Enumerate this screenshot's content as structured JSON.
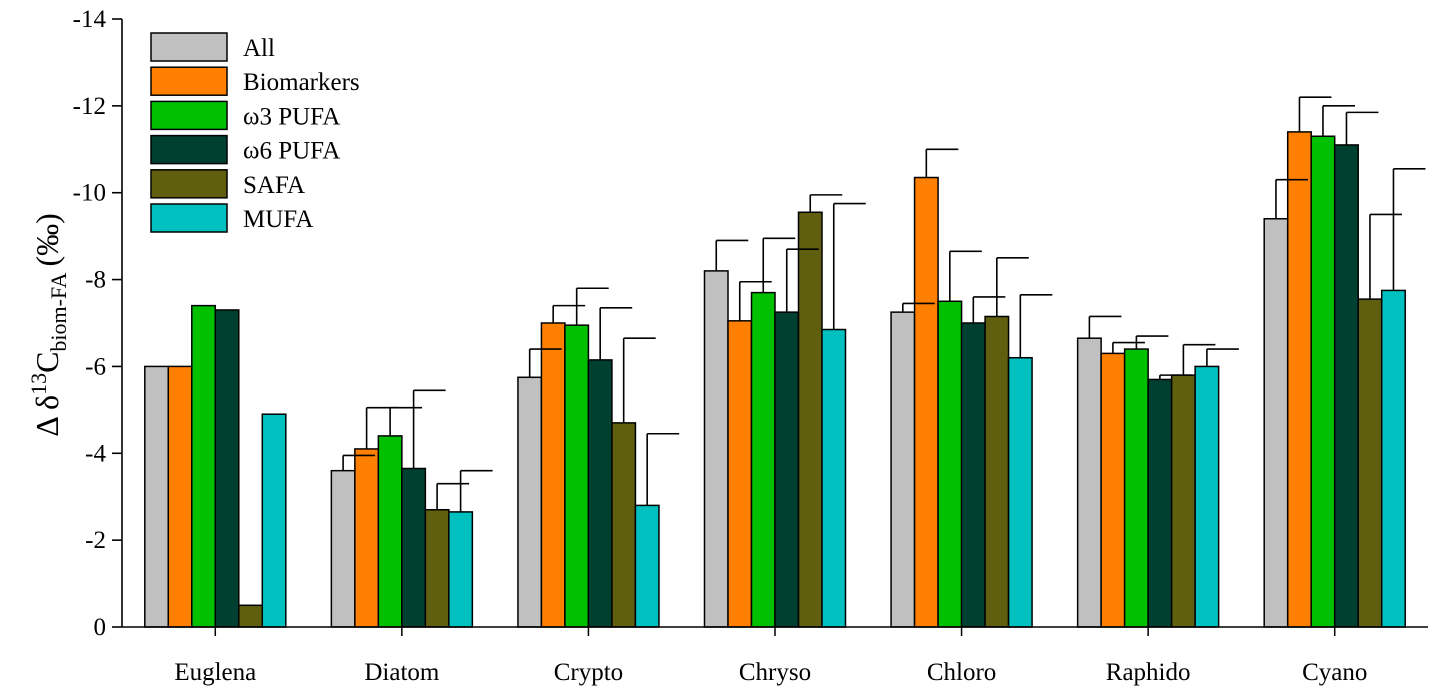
{
  "chart_data": {
    "type": "bar",
    "title": "",
    "xlabel": "",
    "ylabel": {
      "prefix": "Δ δ",
      "superscript": "13",
      "main": "C",
      "subscript": "biom-FA",
      "unit": "(‰)"
    },
    "y_reversed": true,
    "ylim": [
      0,
      -14
    ],
    "yticks": [
      0,
      -2,
      -4,
      -6,
      -8,
      -10,
      -12,
      -14
    ],
    "ytick_labels": [
      "0",
      "-2",
      "-4",
      "-6",
      "-8",
      "-10",
      "-12",
      "-14"
    ],
    "grid": false,
    "legend_position": "top-left",
    "categories": [
      "Euglena",
      "Diatom",
      "Crypto",
      "Chryso",
      "Chloro",
      "Raphido",
      "Cyano"
    ],
    "series": [
      {
        "name": "All",
        "color": "#c0c0c0",
        "values": [
          -6.0,
          -3.6,
          -5.75,
          -8.2,
          -7.25,
          -6.65,
          -9.4
        ],
        "errors": [
          null,
          0.35,
          0.65,
          0.7,
          0.2,
          0.5,
          0.9
        ]
      },
      {
        "name": "Biomarkers",
        "color": "#ff7f00",
        "values": [
          -6.0,
          -4.1,
          -7.0,
          -7.05,
          -10.35,
          -6.3,
          -11.4
        ],
        "errors": [
          null,
          0.95,
          0.4,
          0.9,
          0.65,
          0.25,
          0.8
        ]
      },
      {
        "name": "ω3 PUFA",
        "color": "#00c000",
        "values": [
          -7.4,
          -4.4,
          -6.95,
          -7.7,
          -7.5,
          -6.4,
          -11.3
        ],
        "errors": [
          null,
          0.65,
          0.85,
          1.25,
          1.15,
          0.3,
          0.7
        ]
      },
      {
        "name": "ω6 PUFA",
        "color": "#004030",
        "values": [
          -7.3,
          -3.65,
          -6.15,
          -7.25,
          -7.0,
          -5.7,
          -11.1
        ],
        "errors": [
          null,
          1.8,
          1.2,
          1.45,
          0.6,
          0.1,
          0.75
        ]
      },
      {
        "name": "SAFA",
        "color": "#5f5f0f",
        "values": [
          -0.5,
          -2.7,
          -4.7,
          -9.55,
          -7.15,
          -5.8,
          -7.55
        ],
        "errors": [
          null,
          0.6,
          1.95,
          0.4,
          1.35,
          0.7,
          1.95
        ]
      },
      {
        "name": "MUFA",
        "color": "#00c0c0",
        "values": [
          -4.9,
          -2.65,
          -2.8,
          -6.85,
          -6.2,
          -6.0,
          -7.75
        ],
        "errors": [
          null,
          0.95,
          1.65,
          2.9,
          1.45,
          0.4,
          2.8
        ]
      }
    ]
  }
}
